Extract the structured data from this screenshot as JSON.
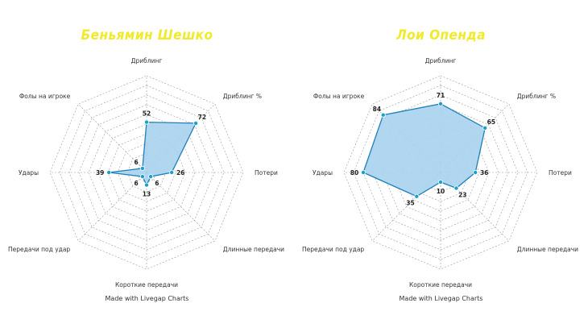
{
  "chart_data": [
    {
      "type": "radar",
      "title": "Беньямин Шешко",
      "credit": "Made with Livegap Charts",
      "axes": [
        "Дриблинг",
        "Дриблинг %",
        "Потери",
        "Длинные передачи",
        "Короткие передачи",
        "Передачи под удар",
        "Удары",
        "Фолы на игроке"
      ],
      "values": [
        52,
        72,
        26,
        6,
        13,
        6,
        39,
        6
      ],
      "rlim": [
        0,
        100
      ],
      "rings": 10,
      "fill_color": "#a9d3ee",
      "line_color": "#1f7fb8",
      "point_color": "#1aa1c9"
    },
    {
      "type": "radar",
      "title": "Лои Опенда",
      "credit": "Made with Livegap Charts",
      "axes": [
        "Дриблинг",
        "Дриблинг %",
        "Потери",
        "Длинные передачи",
        "Короткие передачи",
        "Передачи под удар",
        "Удары",
        "Фолы на игроке"
      ],
      "values": [
        71,
        65,
        36,
        23,
        10,
        35,
        80,
        84
      ],
      "rlim": [
        0,
        100
      ],
      "rings": 10,
      "fill_color": "#a9d3ee",
      "line_color": "#1f7fb8",
      "point_color": "#1aa1c9"
    }
  ]
}
